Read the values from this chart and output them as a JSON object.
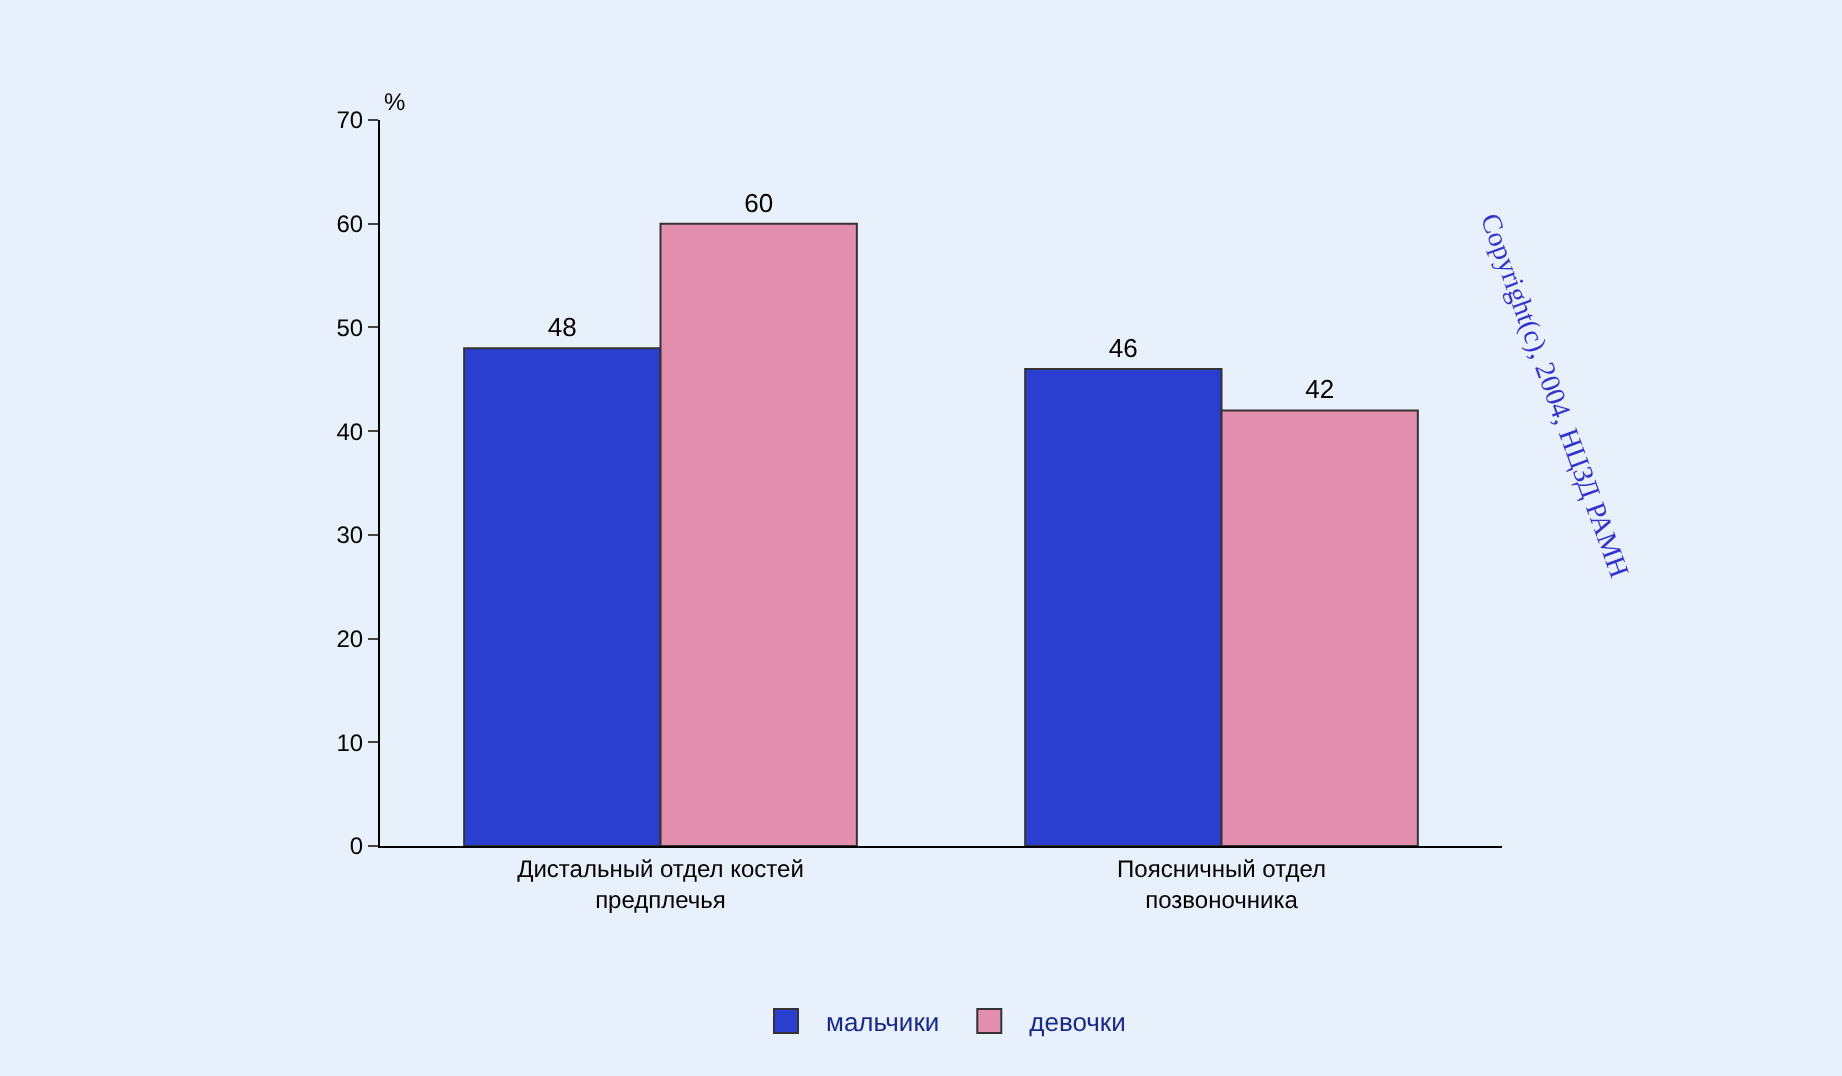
{
  "chart_data": {
    "type": "bar",
    "ylabel": "%",
    "categories": [
      "Дистальный отдел костей предплечья",
      "Поясничный отдел позвоночника"
    ],
    "series": [
      {
        "name": "мальчики",
        "color": "#2a3fd0",
        "values": [
          48,
          46
        ]
      },
      {
        "name": "девочки",
        "color": "#e28fae",
        "values": [
          60,
          42
        ]
      }
    ],
    "ylim": [
      0,
      70
    ],
    "yticks": [
      0,
      10,
      20,
      30,
      40,
      50,
      60,
      70
    ],
    "grid": false,
    "legend": "bottom",
    "data_labels": true,
    "annotations": [
      "Copyright(c), 2004, НЦЗД РАМН"
    ]
  }
}
